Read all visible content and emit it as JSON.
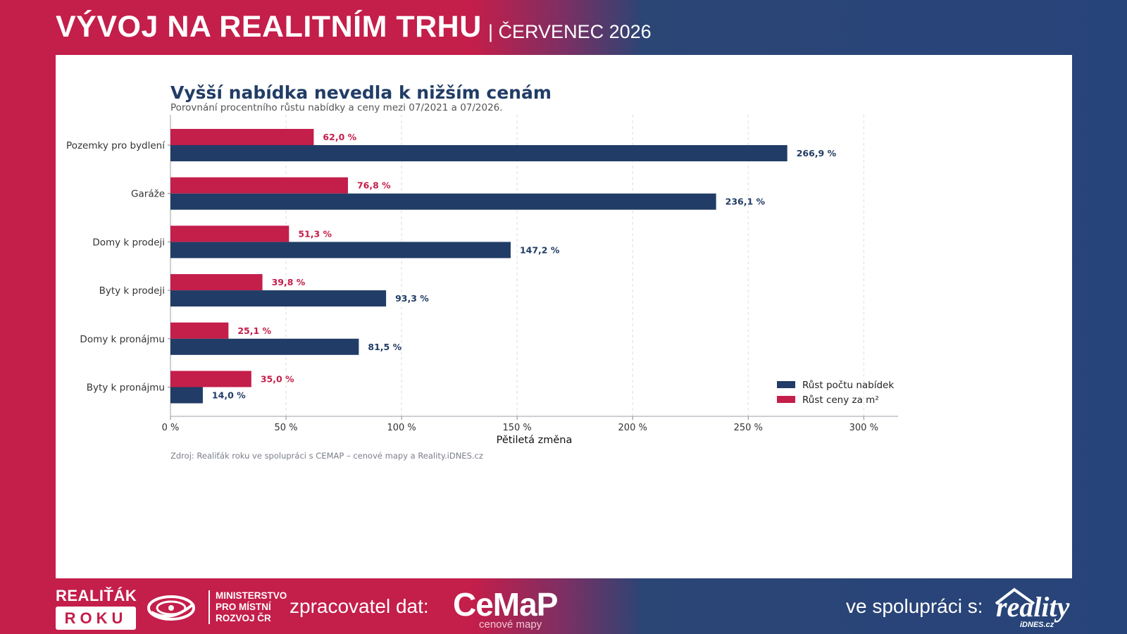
{
  "header": {
    "title": "VÝVOJ NA REALITNÍM TRHU",
    "separator": "|",
    "subtitle": "ČERVENEC 2026"
  },
  "chart_data": {
    "type": "bar",
    "orientation": "horizontal",
    "title": "Vyšší nabídka nevedla k nižším cenám",
    "subtitle": "Porovnání procentního růstu nabídky a ceny mezi 07/2021 a 07/2026.",
    "categories": [
      "Pozemky pro bydlení",
      "Garáže",
      "Domy k prodeji",
      "Byty k prodeji",
      "Domy k pronájmu",
      "Byty k pronájmu"
    ],
    "series": [
      {
        "name": "Růst ceny za m²",
        "color": "#c41e4a",
        "values": [
          62.0,
          76.8,
          51.3,
          39.8,
          25.1,
          35.0
        ],
        "labels": [
          "62,0 %",
          "76,8 %",
          "51,3 %",
          "39,8 %",
          "25,1 %",
          "35,0 %"
        ]
      },
      {
        "name": "Růst počtu nabídek",
        "color": "#213c66",
        "values": [
          266.9,
          236.1,
          147.2,
          93.3,
          81.5,
          14.0
        ],
        "labels": [
          "266,9 %",
          "236,1 %",
          "147,2 %",
          "93,3 %",
          "81,5 %",
          "14,0 %"
        ]
      }
    ],
    "xlim": [
      0,
      315
    ],
    "xticks": [
      0,
      50,
      100,
      150,
      200,
      250,
      300
    ],
    "xtick_labels": [
      "0 %",
      "50 %",
      "100 %",
      "150 %",
      "200 %",
      "250 %",
      "300 %"
    ],
    "xlabel": "Pětiletá změna",
    "grid": "vertical dashed",
    "legend": {
      "position": "bottom-right",
      "entries": [
        {
          "label": "Růst počtu nabídek",
          "color": "#213c66"
        },
        {
          "label": "Růst ceny za m²",
          "color": "#c41e4a"
        }
      ]
    },
    "source": "Zdroj: Realiťák roku ve spolupráci s CEMAP – cenové mapy a Reality.iDNES.cz"
  },
  "footer": {
    "badge_top": "REALIŤÁK",
    "badge_bottom": "ROKU",
    "ministry": [
      "MINISTERSTVO",
      "PRO MÍSTNÍ",
      "ROZVOJ ČR"
    ],
    "processor_label": "zpracovatel dat:",
    "cemap_logo": "CeMaP",
    "cemap_sub": "cenové mapy",
    "coop_label": "ve spolupráci s:",
    "reality_logo": "reality",
    "reality_sub": "iDNES.cz"
  },
  "colors": {
    "crimson": "#c41e4a",
    "navy": "#213c66",
    "background_navy": "#27447a"
  }
}
